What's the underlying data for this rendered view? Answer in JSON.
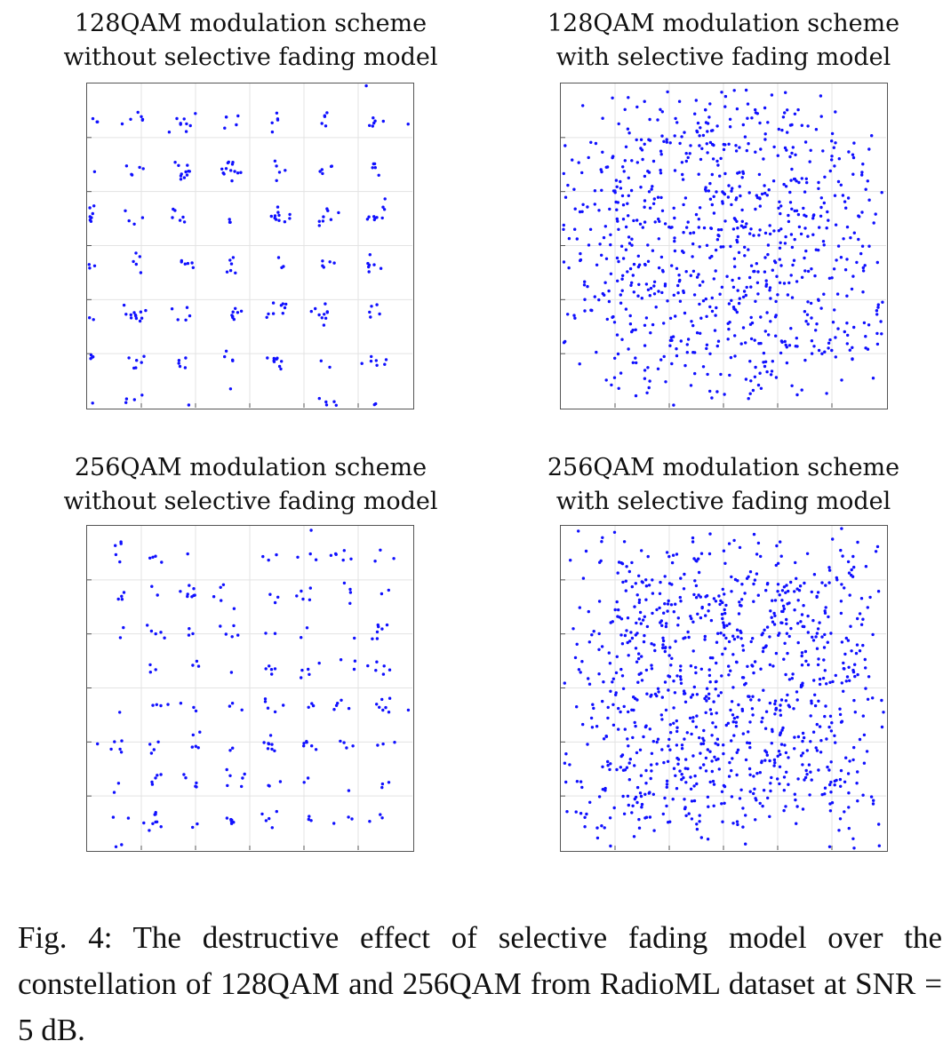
{
  "chart_data": [
    {
      "type": "scatter",
      "title_lines": [
        "128QAM modulation scheme",
        "without selective fading model"
      ],
      "modulation": "128QAM",
      "selective_fading": false,
      "constellation_side": 12,
      "constellation_corner_cut": 2,
      "noise_sigma": 0.22,
      "num_points": 900,
      "seed": 11,
      "xlim": [
        -7,
        6.6
      ],
      "ylim": [
        -7,
        6.6
      ],
      "grid": true,
      "point_color": "#1010ff"
    },
    {
      "type": "scatter",
      "title_lines": [
        "128QAM modulation scheme",
        "with selective fading model"
      ],
      "modulation": "128QAM",
      "selective_fading": true,
      "constellation_side": 12,
      "constellation_corner_cut": 2,
      "noise_sigma": 1.6,
      "num_points": 900,
      "seed": 23,
      "xlim": [
        -9,
        9
      ],
      "ylim": [
        -9,
        9
      ],
      "grid": true,
      "point_color": "#1010ff"
    },
    {
      "type": "scatter",
      "title_lines": [
        "256QAM modulation scheme",
        "without selective fading model"
      ],
      "modulation": "256QAM",
      "selective_fading": false,
      "constellation_side": 16,
      "constellation_corner_cut": 0,
      "noise_sigma": 0.28,
      "num_points": 1000,
      "seed": 37,
      "xlim": [
        -8.6,
        8.6
      ],
      "ylim": [
        -8.6,
        8.6
      ],
      "grid": true,
      "point_color": "#1010ff"
    },
    {
      "type": "scatter",
      "title_lines": [
        "256QAM modulation scheme",
        "with selective fading model"
      ],
      "modulation": "256QAM",
      "selective_fading": true,
      "constellation_side": 16,
      "constellation_corner_cut": 0,
      "noise_sigma": 1.5,
      "num_points": 1000,
      "seed": 53,
      "xlim": [
        -13,
        13
      ],
      "ylim": [
        -13,
        13
      ],
      "grid": true,
      "point_color": "#1010ff"
    }
  ],
  "caption": "Fig. 4: The destructive effect of selective fading model over the constellation of 128QAM and 256QAM from RadioML dataset at SNR = 5 dB."
}
